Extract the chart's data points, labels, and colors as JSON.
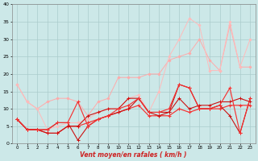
{
  "xlabel": "Vent moyen/en rafales ( km/h )",
  "x_values": [
    0,
    1,
    2,
    3,
    4,
    5,
    6,
    7,
    8,
    9,
    10,
    11,
    12,
    13,
    14,
    15,
    16,
    17,
    18,
    19,
    20,
    21,
    22,
    23
  ],
  "series": [
    {
      "color": "#ffaaaa",
      "linewidth": 0.7,
      "marker": "D",
      "markersize": 1.5,
      "data": [
        7,
        4,
        4,
        3,
        3,
        5,
        5,
        6,
        7,
        8,
        9,
        10,
        11,
        8,
        8,
        8,
        10,
        9,
        10,
        10,
        10,
        11,
        11,
        11
      ]
    },
    {
      "color": "#ffaaaa",
      "linewidth": 0.7,
      "marker": "D",
      "markersize": 1.5,
      "data": [
        17,
        12,
        10,
        12,
        13,
        13,
        12,
        8,
        12,
        13,
        19,
        19,
        19,
        20,
        20,
        24,
        25,
        26,
        30,
        24,
        21,
        34,
        22,
        22
      ]
    },
    {
      "color": "#ffbbbb",
      "linewidth": 0.7,
      "marker": "D",
      "markersize": 1.5,
      "data": [
        17,
        12,
        10,
        4,
        5,
        6,
        6,
        7,
        9,
        10,
        10,
        13,
        14,
        9,
        15,
        25,
        30,
        36,
        34,
        21,
        21,
        35,
        22,
        30
      ]
    },
    {
      "color": "#ffbbbb",
      "linewidth": 0.7,
      "marker": "D",
      "markersize": 1.5,
      "data": [
        7,
        4,
        4,
        4,
        6,
        6,
        12,
        5,
        7,
        8,
        10,
        11,
        13,
        9,
        9,
        10,
        17,
        16,
        10,
        10,
        11,
        16,
        3,
        13
      ]
    },
    {
      "color": "#ee3333",
      "linewidth": 0.8,
      "marker": "+",
      "markersize": 2.5,
      "data": [
        7,
        4,
        4,
        3,
        3,
        5,
        5,
        6,
        7,
        8,
        9,
        10,
        11,
        8,
        8,
        8,
        10,
        9,
        10,
        10,
        10,
        11,
        11,
        11
      ]
    },
    {
      "color": "#cc1111",
      "linewidth": 0.8,
      "marker": "+",
      "markersize": 2.5,
      "data": [
        7,
        4,
        4,
        4,
        6,
        6,
        1,
        5,
        7,
        8,
        9,
        10,
        13,
        9,
        8,
        9,
        17,
        16,
        10,
        10,
        11,
        8,
        3,
        13
      ]
    },
    {
      "color": "#cc1111",
      "linewidth": 0.8,
      "marker": "+",
      "markersize": 2.5,
      "data": [
        7,
        4,
        4,
        3,
        3,
        5,
        5,
        8,
        9,
        10,
        10,
        13,
        13,
        9,
        9,
        9,
        13,
        10,
        11,
        11,
        12,
        12,
        13,
        12
      ]
    },
    {
      "color": "#ee3333",
      "linewidth": 0.8,
      "marker": "+",
      "markersize": 2.5,
      "data": [
        7,
        4,
        4,
        4,
        6,
        6,
        12,
        5,
        7,
        8,
        10,
        11,
        13,
        9,
        9,
        10,
        17,
        16,
        10,
        10,
        11,
        16,
        3,
        13
      ]
    }
  ],
  "ylim": [
    0,
    40
  ],
  "xlim": [
    -0.5,
    23.5
  ],
  "yticks": [
    0,
    5,
    10,
    15,
    20,
    25,
    30,
    35,
    40
  ],
  "xticks": [
    0,
    1,
    2,
    3,
    4,
    5,
    6,
    7,
    8,
    9,
    10,
    11,
    12,
    13,
    14,
    15,
    16,
    17,
    18,
    19,
    20,
    21,
    22,
    23
  ],
  "bg_color": "#cce8e8",
  "grid_color": "#aacccc"
}
